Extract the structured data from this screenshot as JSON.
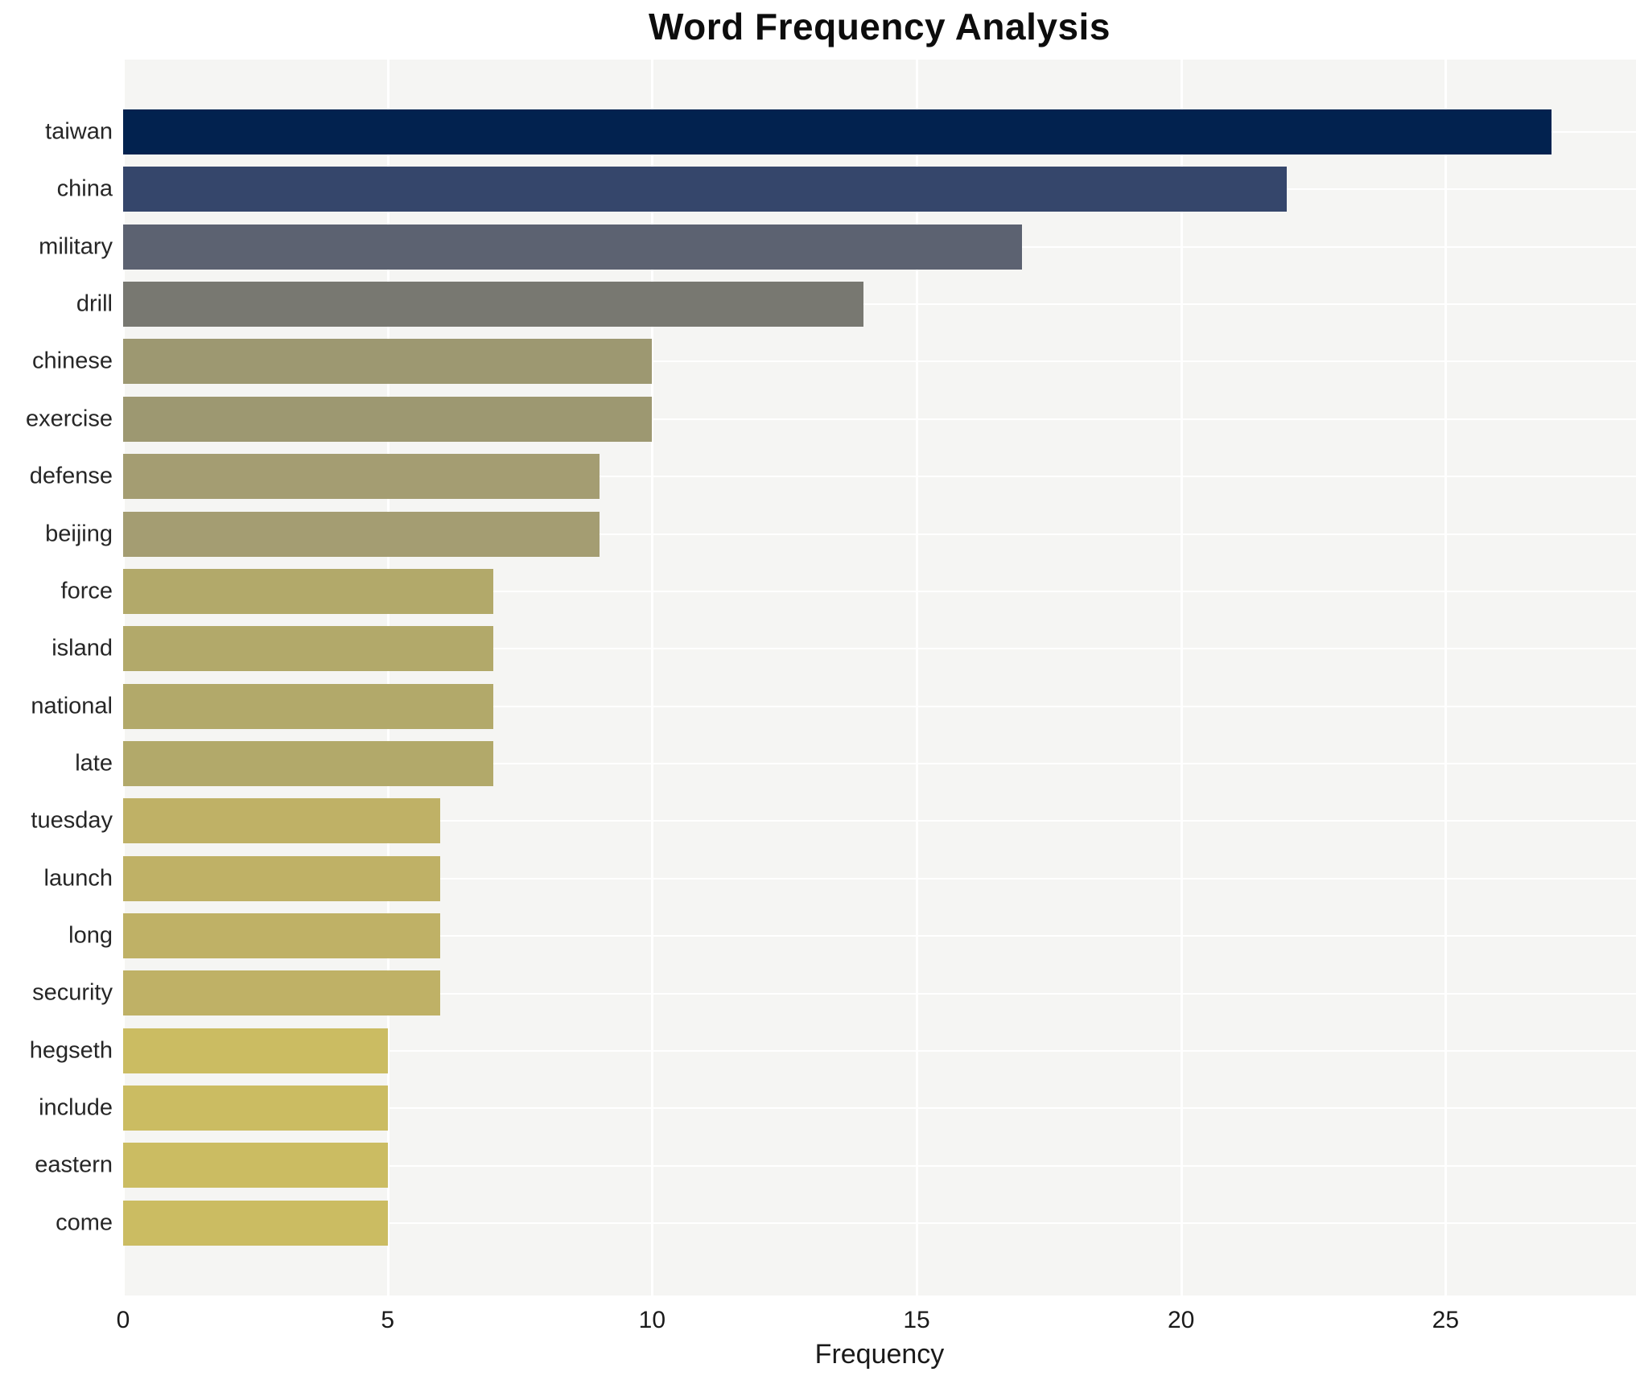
{
  "chart_data": {
    "type": "bar",
    "orientation": "horizontal",
    "title": "Word Frequency Analysis",
    "xlabel": "Frequency",
    "ylabel": "",
    "xlim": [
      0,
      28.6
    ],
    "xticks": [
      0,
      5,
      10,
      15,
      20,
      25
    ],
    "grid": true,
    "legend": "none",
    "panel_background": "#f5f5f3",
    "gridline_color": "#ffffff",
    "categories": [
      "taiwan",
      "china",
      "military",
      "drill",
      "chinese",
      "exercise",
      "defense",
      "beijing",
      "force",
      "island",
      "national",
      "late",
      "tuesday",
      "launch",
      "long",
      "security",
      "hegseth",
      "include",
      "eastern",
      "come"
    ],
    "values": [
      27,
      22,
      17,
      14,
      10,
      10,
      9,
      9,
      7,
      7,
      7,
      7,
      6,
      6,
      6,
      6,
      5,
      5,
      5,
      5
    ],
    "bar_colors": [
      "#02224f",
      "#35466b",
      "#5c6271",
      "#787871",
      "#9d9871",
      "#9d9871",
      "#a49d72",
      "#a49d72",
      "#b2a96a",
      "#b2a96a",
      "#b2a96a",
      "#b2a96a",
      "#bfb166",
      "#bfb166",
      "#bfb166",
      "#bfb166",
      "#cbbc62",
      "#cbbc62",
      "#cbbc62",
      "#cbbc62"
    ]
  }
}
